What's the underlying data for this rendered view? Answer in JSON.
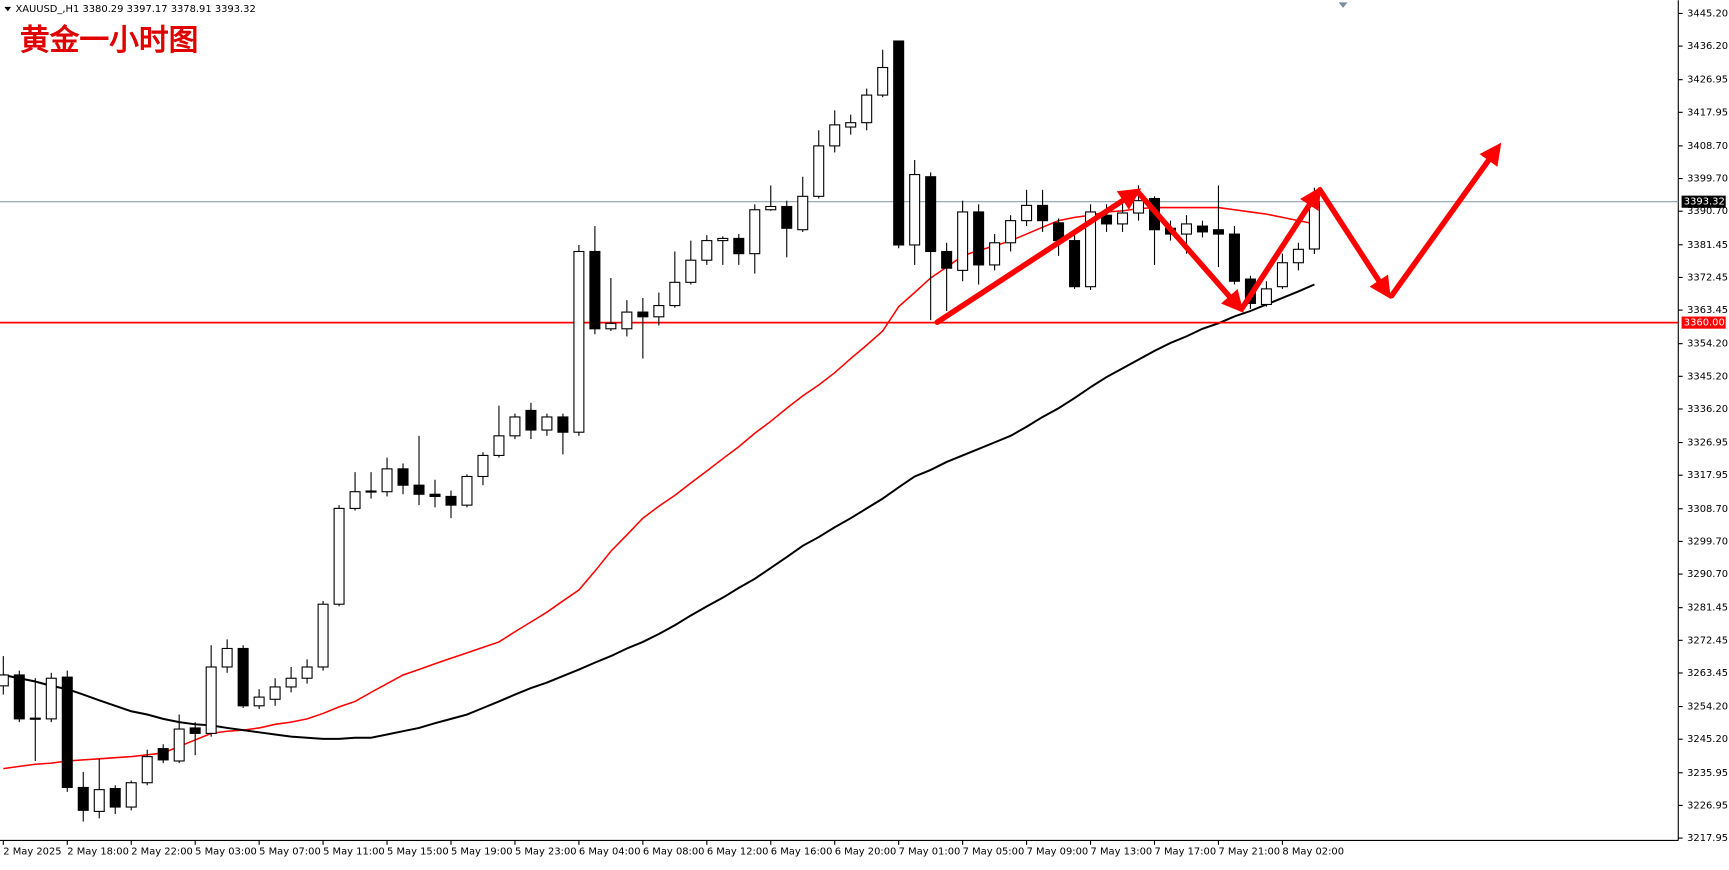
{
  "chart_data": {
    "type": "candlestick",
    "title": "黄金一小时图",
    "symbol": "XAUUSD_,H1",
    "categories": [
      "2 May 2025",
      null,
      null,
      null,
      "2 May 18:00",
      null,
      null,
      null,
      "2 May 22:00",
      null,
      null,
      null,
      "5 May 03:00",
      null,
      null,
      null,
      "5 May 07:00",
      null,
      null,
      null,
      "5 May 11:00",
      null,
      null,
      null,
      "5 May 15:00",
      null,
      null,
      null,
      "5 May 19:00",
      null,
      null,
      null,
      "5 May 23:00",
      null,
      null,
      null,
      "6 May 04:00",
      null,
      null,
      null,
      "6 May 08:00",
      null,
      null,
      null,
      "6 May 12:00",
      null,
      null,
      null,
      "6 May 16:00",
      null,
      null,
      null,
      "6 May 20:00",
      null,
      null,
      null,
      "7 May 01:00",
      null,
      null,
      null,
      "7 May 05:00",
      null,
      null,
      null,
      "7 May 09:00",
      null,
      null,
      null,
      "7 May 13:00",
      null,
      null,
      null,
      "7 May 17:00",
      null,
      null,
      null,
      "7 May 21:00",
      null,
      null,
      null,
      "8 May 02:00",
      null,
      null
    ],
    "open": [
      3259.9,
      3262.9,
      3250.8,
      3250.8,
      3262.3,
      3231.9,
      3225.3,
      3231.6,
      3226.5,
      3233.2,
      3242.6,
      3239.2,
      3248.3,
      3246.8,
      3265.1,
      3270.2,
      3254.4,
      3256.2,
      3259.6,
      3262.0,
      3265.1,
      3282.4,
      3308.8,
      3313.4,
      3313.4,
      3319.7,
      3315.2,
      3312.7,
      3312.1,
      3309.7,
      3317.6,
      3323.4,
      3328.8,
      3335.8,
      3330.4,
      3334.0,
      3329.8,
      3379.6,
      3358.3,
      3358.3,
      3362.9,
      3361.6,
      3364.7,
      3371.1,
      3377.2,
      3382.6,
      3383.2,
      3379.0,
      3391.1,
      3392.0,
      3385.6,
      3394.8,
      3408.7,
      3413.9,
      3415.1,
      3422.7,
      3437.6,
      3381.4,
      3400.2,
      3379.6,
      3374.4,
      3390.5,
      3375.9,
      3382.0,
      3388.1,
      3392.3,
      3387.5,
      3382.6,
      3369.9,
      3389.6,
      3387.2,
      3390.2,
      3394.2,
      3386.0,
      3384.4,
      3386.6,
      3385.6,
      3384.4,
      3372.0,
      3365.0,
      3369.9,
      3376.5,
      3380.29
    ],
    "high": [
      3268.1,
      3264.1,
      3262.0,
      3263.5,
      3264.1,
      3236.2,
      3239.8,
      3232.5,
      3233.8,
      3242.3,
      3243.8,
      3252.0,
      3249.9,
      3271.1,
      3272.7,
      3271.1,
      3259.0,
      3262.0,
      3265.1,
      3267.2,
      3283.3,
      3309.7,
      3318.8,
      3318.8,
      3322.8,
      3321.2,
      3328.8,
      3316.7,
      3313.7,
      3318.2,
      3324.3,
      3337.1,
      3334.9,
      3337.9,
      3334.9,
      3334.9,
      3381.4,
      3386.6,
      3372.3,
      3366.2,
      3366.8,
      3368.3,
      3379.6,
      3382.6,
      3384.1,
      3383.8,
      3384.4,
      3392.6,
      3397.8,
      3393.6,
      3400.2,
      3413.0,
      3418.5,
      3417.3,
      3424.5,
      3435.2,
      3437.6,
      3404.8,
      3401.4,
      3382.0,
      3393.6,
      3392.6,
      3384.4,
      3389.6,
      3396.6,
      3396.6,
      3388.7,
      3384.4,
      3392.6,
      3392.6,
      3394.2,
      3397.8,
      3394.8,
      3388.1,
      3389.6,
      3388.1,
      3397.8,
      3386.6,
      3372.9,
      3371.4,
      3379.0,
      3382.0,
      3397.17
    ],
    "low": [
      3257.5,
      3249.9,
      3239.2,
      3249.9,
      3230.7,
      3222.5,
      3223.4,
      3224.6,
      3225.6,
      3232.5,
      3238.6,
      3238.6,
      3240.8,
      3245.9,
      3263.5,
      3253.8,
      3253.5,
      3254.4,
      3258.1,
      3260.5,
      3264.1,
      3281.8,
      3308.2,
      3311.5,
      3312.1,
      3312.7,
      3309.7,
      3309.1,
      3306.1,
      3309.1,
      3315.2,
      3322.8,
      3327.9,
      3327.9,
      3328.8,
      3323.7,
      3328.8,
      3356.8,
      3357.7,
      3356.2,
      3350.1,
      3359.2,
      3364.1,
      3370.5,
      3375.9,
      3375.9,
      3375.9,
      3373.5,
      3390.8,
      3378.0,
      3385.0,
      3394.2,
      3406.9,
      3411.8,
      3413.0,
      3422.1,
      3380.5,
      3375.9,
      3360.7,
      3363.2,
      3371.4,
      3370.5,
      3374.4,
      3379.6,
      3386.6,
      3385.0,
      3378.4,
      3369.3,
      3369.0,
      3385.0,
      3385.0,
      3388.1,
      3375.9,
      3382.6,
      3379.0,
      3383.5,
      3375.3,
      3370.5,
      3363.8,
      3364.4,
      3369.3,
      3374.4,
      3378.91
    ],
    "close": [
      3262.9,
      3250.8,
      3251.0,
      3262.0,
      3231.9,
      3225.6,
      3231.3,
      3226.5,
      3233.2,
      3240.4,
      3239.5,
      3248.0,
      3246.8,
      3265.1,
      3270.2,
      3254.4,
      3256.8,
      3259.6,
      3262.0,
      3265.1,
      3282.4,
      3308.8,
      3313.4,
      3313.6,
      3319.7,
      3315.2,
      3312.7,
      3312.1,
      3309.7,
      3317.6,
      3323.4,
      3328.8,
      3334.0,
      3330.4,
      3334.0,
      3329.8,
      3379.6,
      3358.3,
      3359.8,
      3362.9,
      3361.6,
      3364.7,
      3371.1,
      3377.2,
      3382.6,
      3383.2,
      3379.0,
      3391.1,
      3392.0,
      3386.0,
      3394.8,
      3408.7,
      3414.5,
      3415.1,
      3422.7,
      3430.3,
      3381.4,
      3400.8,
      3379.6,
      3375.0,
      3390.5,
      3375.9,
      3382.0,
      3388.1,
      3392.3,
      3388.1,
      3382.6,
      3369.9,
      3390.5,
      3387.2,
      3390.2,
      3393.6,
      3385.6,
      3384.4,
      3387.2,
      3385.0,
      3384.4,
      3371.4,
      3365.3,
      3369.3,
      3376.5,
      3380.2,
      3393.32
    ],
    "lines": [
      {
        "color": "#ff0000",
        "values": [
          3237.1,
          3237.7,
          3238.3,
          3238.6,
          3239.2,
          3239.5,
          3239.8,
          3240.1,
          3240.4,
          3240.9,
          3241.4,
          3243.2,
          3245.0,
          3246.8,
          3247.4,
          3247.7,
          3248.3,
          3249.3,
          3249.9,
          3250.8,
          3252.3,
          3254.1,
          3255.6,
          3258.1,
          3260.5,
          3262.9,
          3264.4,
          3266.0,
          3267.5,
          3269.0,
          3270.5,
          3272.0,
          3274.8,
          3277.5,
          3280.2,
          3283.3,
          3286.3,
          3291.5,
          3297.0,
          3301.5,
          3306.1,
          3309.4,
          3312.4,
          3315.8,
          3319.1,
          3322.5,
          3325.8,
          3329.5,
          3332.8,
          3336.4,
          3339.8,
          3342.8,
          3346.2,
          3350.1,
          3353.8,
          3357.7,
          3364.4,
          3368.3,
          3372.3,
          3375.3,
          3378.4,
          3379.9,
          3381.1,
          3382.6,
          3384.4,
          3386.3,
          3388.1,
          3389.0,
          3389.6,
          3390.5,
          3390.8,
          3391.4,
          3391.7,
          3391.7,
          3391.7,
          3391.7,
          3391.7,
          3391.1,
          3390.5,
          3389.9,
          3389.0,
          3388.1,
          3387.2
        ]
      },
      {
        "color": "#000000",
        "values": [
          3262.9,
          3262.0,
          3261.1,
          3259.9,
          3259.0,
          3257.5,
          3255.9,
          3254.4,
          3252.9,
          3252.0,
          3250.8,
          3249.9,
          3249.3,
          3249.0,
          3248.3,
          3247.7,
          3247.1,
          3246.5,
          3245.9,
          3245.6,
          3245.3,
          3245.3,
          3245.6,
          3245.6,
          3246.5,
          3247.4,
          3248.3,
          3249.6,
          3250.8,
          3252.0,
          3253.8,
          3255.6,
          3257.5,
          3259.3,
          3260.8,
          3262.6,
          3264.4,
          3266.3,
          3268.1,
          3270.2,
          3272.0,
          3274.2,
          3276.6,
          3279.3,
          3281.8,
          3284.2,
          3286.9,
          3289.4,
          3292.4,
          3295.4,
          3298.5,
          3300.9,
          3303.6,
          3306.1,
          3308.8,
          3311.5,
          3314.6,
          3317.6,
          3319.4,
          3321.6,
          3323.4,
          3325.2,
          3327.0,
          3328.8,
          3331.3,
          3334.0,
          3336.4,
          3339.2,
          3342.2,
          3345.0,
          3347.4,
          3349.8,
          3352.2,
          3354.4,
          3356.2,
          3358.3,
          3359.8,
          3361.7,
          3363.2,
          3365.0,
          3366.8,
          3368.6,
          3370.5
        ]
      }
    ],
    "hline": {
      "value": 3360,
      "label": "3360.00",
      "color": "#ff0000"
    },
    "price_line": {
      "value": 3393.32,
      "label": "3393.32",
      "color": "#8da0b0"
    },
    "ylim": [
      3217.3,
      3448.85
    ],
    "yticks": [
      {
        "value": 3445.2,
        "label": "3445.20"
      },
      {
        "value": 3436.2,
        "label": "3436.20"
      },
      3426.95,
      3417.95,
      {
        "value": 3408.7,
        "label": "3408.70"
      },
      {
        "value": 3399.7,
        "label": "3399.70"
      },
      {
        "value": 3390.7,
        "label": "3390.70"
      },
      3381.45,
      3372.45,
      3363.45,
      {
        "value": 3354.2,
        "label": "3354.20"
      },
      {
        "value": 3345.2,
        "label": "3345.20"
      },
      {
        "value": 3336.2,
        "label": "3336.20"
      },
      3326.95,
      3317.95,
      {
        "value": 3308.7,
        "label": "3308.70"
      },
      {
        "value": 3299.7,
        "label": "3299.70"
      },
      {
        "value": 3290.7,
        "label": "3290.70"
      },
      3281.45,
      3272.45,
      3263.45,
      {
        "value": 3254.2,
        "label": "3254.20"
      },
      {
        "value": 3245.2,
        "label": "3245.20"
      },
      3235.95,
      3226.95,
      3217.95
    ]
  }
}
